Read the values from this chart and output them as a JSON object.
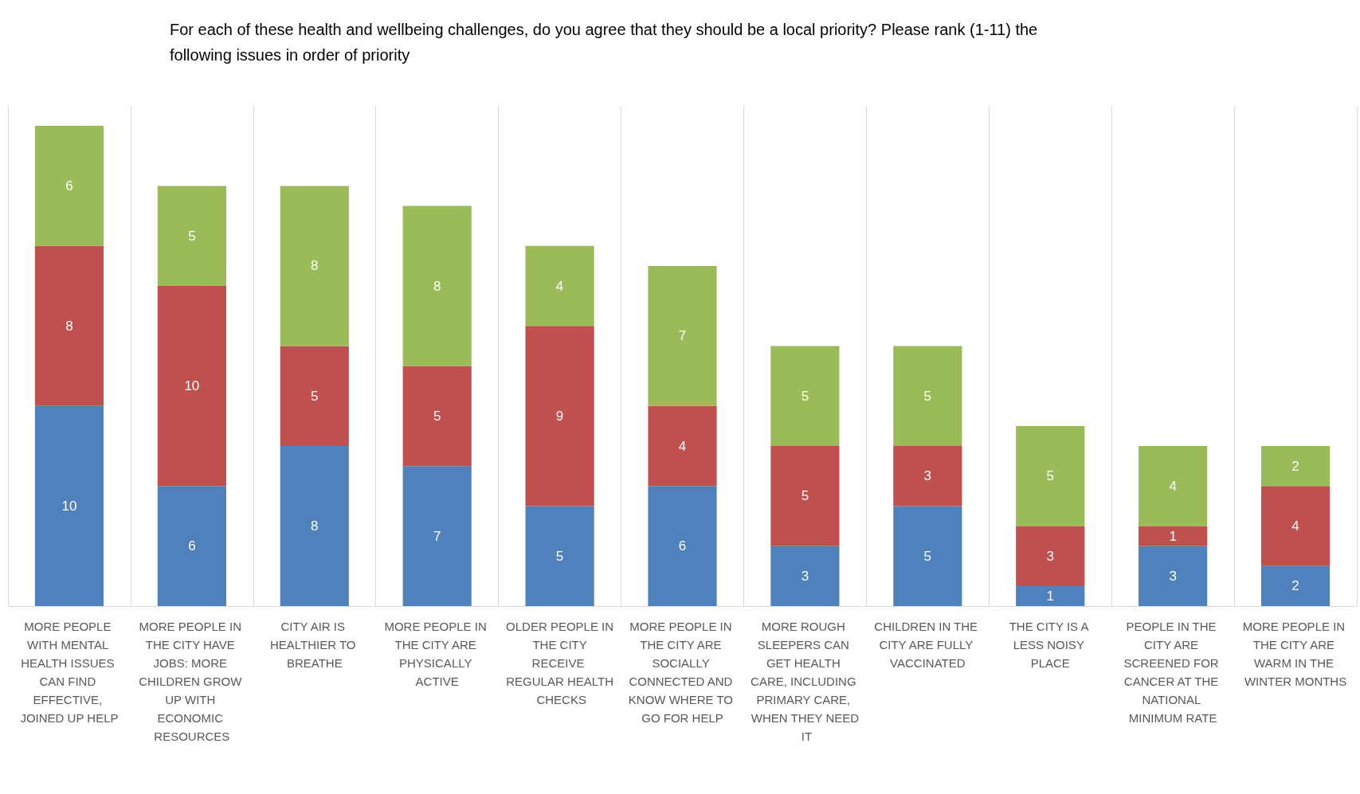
{
  "chart_data": {
    "type": "bar",
    "stacked": true,
    "data_labels": true,
    "grid": "x",
    "title": "For each of these health and wellbeing challenges, do you agree that they should be a local priority? Please rank (1-11) the following issues in order of priority",
    "categories": [
      "MORE PEOPLE WITH MENTAL HEALTH ISSUES CAN FIND EFFECTIVE, JOINED UP HELP",
      "MORE PEOPLE IN THE CITY HAVE JOBS: MORE CHILDREN GROW UP WITH ECONOMIC RESOURCES",
      "CITY AIR IS HEALTHIER TO BREATHE",
      "MORE PEOPLE IN THE CITY ARE PHYSICALLY ACTIVE",
      "OLDER PEOPLE IN THE CITY RECEIVE REGULAR HEALTH CHECKS",
      "MORE PEOPLE IN THE CITY ARE SOCIALLY CONNECTED AND KNOW WHERE TO GO FOR HELP",
      "MORE ROUGH SLEEPERS CAN GET HEALTH CARE, INCLUDING PRIMARY CARE, WHEN THEY NEED IT",
      "CHILDREN IN THE CITY ARE FULLY VACCINATED",
      "THE CITY IS A LESS NOISY PLACE",
      "PEOPLE IN THE CITY ARE SCREENED FOR CANCER AT THE NATIONAL MINIMUM RATE",
      "MORE PEOPLE IN THE CITY ARE WARM IN THE WINTER MONTHS"
    ],
    "series": [
      {
        "color": "#4f81bd",
        "values": [
          10,
          6,
          8,
          7,
          5,
          6,
          3,
          5,
          1,
          3,
          2
        ]
      },
      {
        "color": "#c0504d",
        "values": [
          8,
          10,
          5,
          5,
          9,
          4,
          5,
          3,
          3,
          1,
          4
        ]
      },
      {
        "color": "#9bbb59",
        "values": [
          6,
          5,
          8,
          8,
          4,
          7,
          5,
          5,
          5,
          4,
          2
        ]
      }
    ]
  }
}
